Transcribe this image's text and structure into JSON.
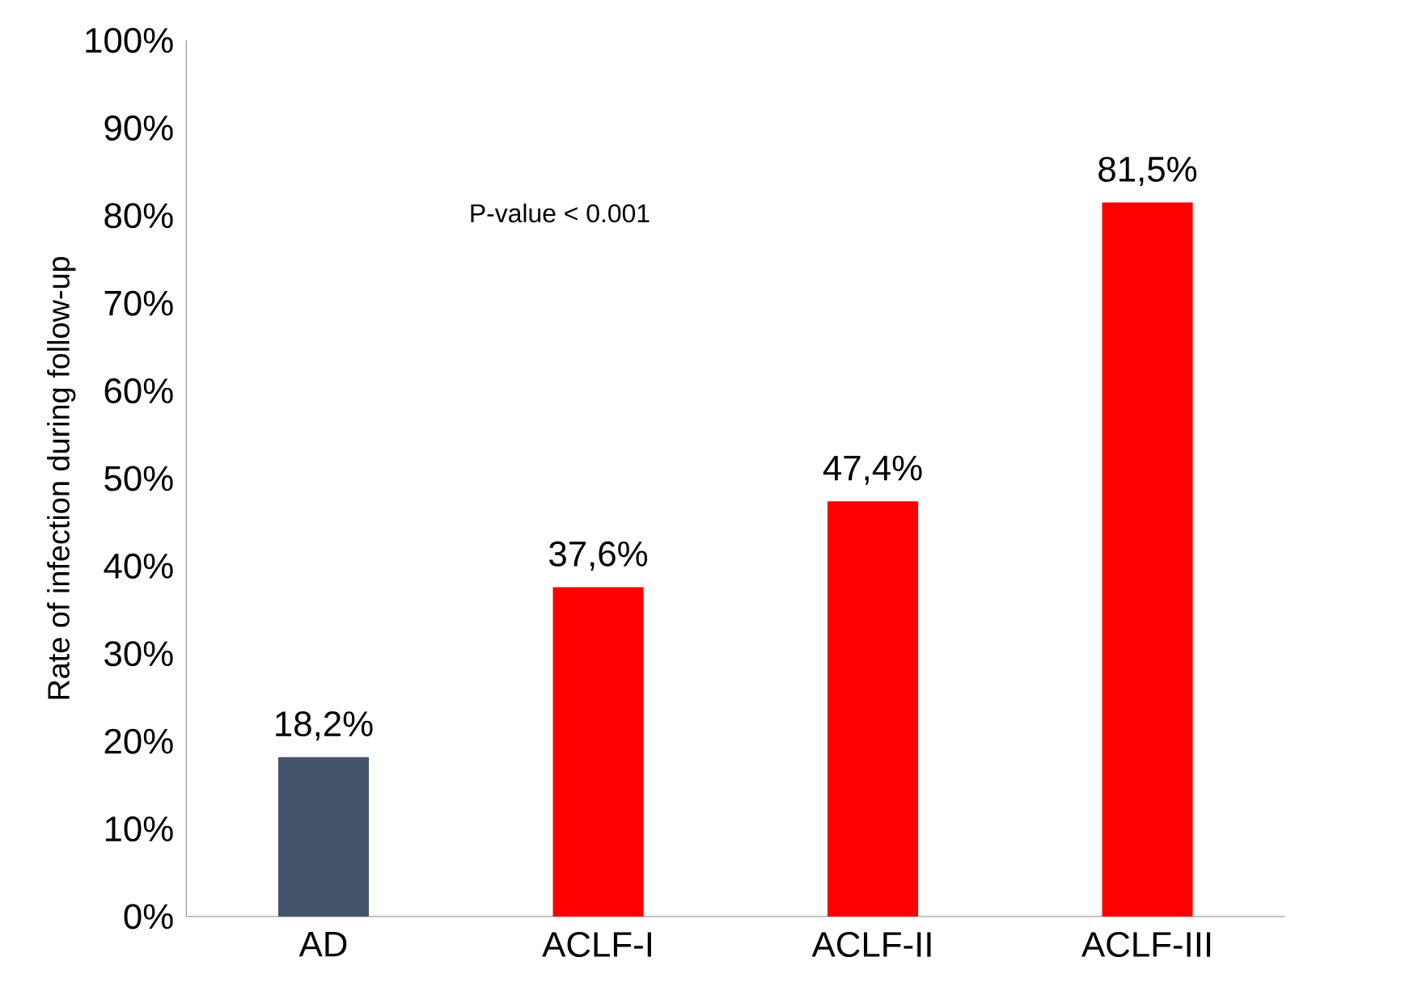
{
  "chart_data": {
    "type": "bar",
    "categories": [
      "AD",
      "ACLF-I",
      "ACLF-II",
      "ACLF-III"
    ],
    "values": [
      18.2,
      37.6,
      47.4,
      81.5
    ],
    "colors": [
      "#44546a",
      "#ff0000",
      "#ff0000",
      "#ff0000"
    ],
    "value_labels": [
      "18,2%",
      "37,6%",
      "47,4%",
      "81,5%"
    ],
    "ylabel": "Rate of infection during follow-up",
    "ylim": [
      0,
      100
    ],
    "yticks": [
      {
        "value": 0,
        "label": "0%"
      },
      {
        "value": 10,
        "label": "10%"
      },
      {
        "value": 20,
        "label": "20%"
      },
      {
        "value": 30,
        "label": "30%"
      },
      {
        "value": 40,
        "label": "40%"
      },
      {
        "value": 50,
        "label": "50%"
      },
      {
        "value": 60,
        "label": "60%"
      },
      {
        "value": 70,
        "label": "70%"
      },
      {
        "value": 80,
        "label": "80%"
      },
      {
        "value": 90,
        "label": "90%"
      },
      {
        "value": 100,
        "label": "100%"
      }
    ],
    "annotations": [
      "P-value < 0.001"
    ]
  }
}
